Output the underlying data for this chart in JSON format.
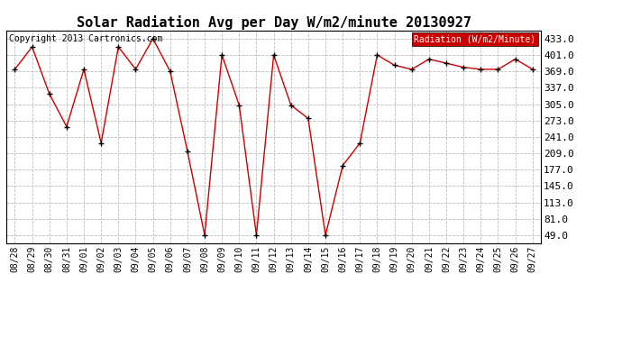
{
  "title": "Solar Radiation Avg per Day W/m2/minute 20130927",
  "copyright": "Copyright 2013 Cartronics.com",
  "legend_label": "Radiation (W/m2/Minute)",
  "dates": [
    "08/28",
    "08/29",
    "08/30",
    "08/31",
    "09/01",
    "09/02",
    "09/03",
    "09/04",
    "09/05",
    "09/06",
    "09/07",
    "09/08",
    "09/09",
    "09/10",
    "09/11",
    "09/12",
    "09/13",
    "09/14",
    "09/15",
    "09/16",
    "09/17",
    "09/18",
    "09/19",
    "09/20",
    "09/21",
    "09/22",
    "09/23",
    "09/24",
    "09/25",
    "09/26",
    "09/27"
  ],
  "values": [
    373,
    417,
    325,
    261,
    373,
    229,
    417,
    373,
    433,
    369,
    213,
    49,
    401,
    303,
    49,
    401,
    303,
    277,
    49,
    185,
    229,
    401,
    381,
    373,
    393,
    385,
    377,
    373,
    373,
    393,
    373
  ],
  "line_color": "#cc0000",
  "marker_color": "#000000",
  "bg_color": "#ffffff",
  "grid_color": "#bbbbbb",
  "yticks": [
    49.0,
    81.0,
    113.0,
    145.0,
    177.0,
    209.0,
    241.0,
    273.0,
    305.0,
    337.0,
    369.0,
    401.0,
    433.0
  ],
  "ylim": [
    33,
    449
  ],
  "legend_bg": "#cc0000",
  "legend_text_color": "#ffffff",
  "title_fontsize": 11,
  "copyright_fontsize": 7,
  "tick_fontsize": 7,
  "ytick_fontsize": 8
}
